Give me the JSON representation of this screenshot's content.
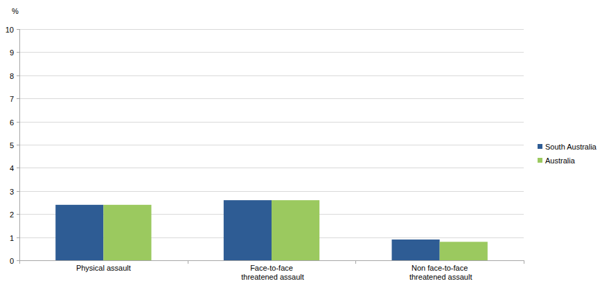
{
  "chart_data": {
    "type": "bar",
    "y_label": "%",
    "categories": [
      "Physical assault",
      "Face-to-face threatened assault",
      "Non face-to-face threatened assault"
    ],
    "series": [
      {
        "name": "South Australia",
        "color": "#2e5c94",
        "values": [
          2.4,
          2.6,
          0.9
        ]
      },
      {
        "name": "Australia",
        "color": "#9bc95f",
        "values": [
          2.4,
          2.6,
          0.8
        ]
      }
    ],
    "ylim": [
      0,
      10
    ],
    "yticks": [
      0,
      1,
      2,
      3,
      4,
      5,
      6,
      7,
      8,
      9,
      10
    ],
    "grid": true,
    "legend": "right"
  }
}
